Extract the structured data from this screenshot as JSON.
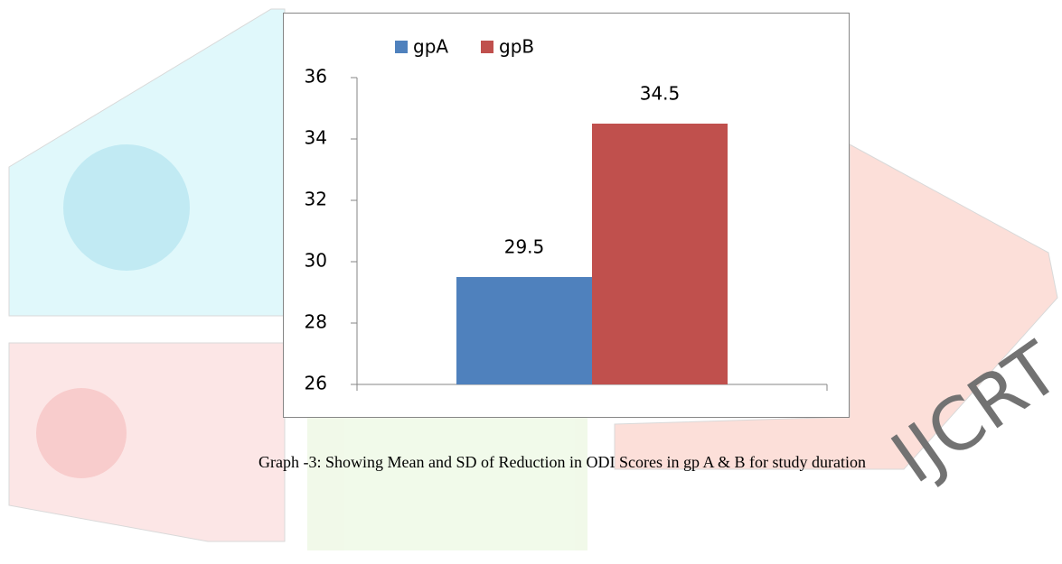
{
  "chart_data": {
    "type": "bar",
    "categories": [
      null
    ],
    "series": [
      {
        "name": "gpA",
        "color": "#4f81bd",
        "values": [
          29.5
        ]
      },
      {
        "name": "gpB",
        "color": "#c0504d",
        "values": [
          34.5
        ]
      }
    ],
    "ylim": [
      26,
      36
    ],
    "yticks": [
      26,
      28,
      30,
      32,
      34,
      36
    ],
    "legend": "top-left",
    "caption": "Graph -3: Showing Mean and SD of Reduction in ODI Scores in gp A & B for study duration"
  }
}
